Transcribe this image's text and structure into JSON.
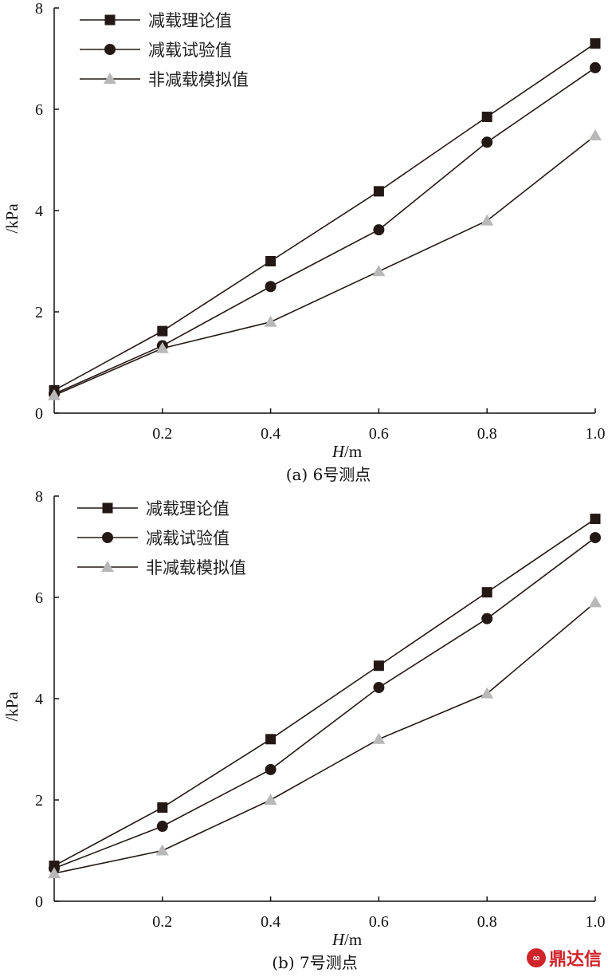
{
  "watermark": {
    "text": "鼎达信"
  },
  "chart_data": [
    {
      "type": "line",
      "caption": "(a) 6号测点",
      "xlabel_italic": "H",
      "xlabel_unit": "/m",
      "ylabel": "/kPa",
      "xlim": [
        0,
        1.0
      ],
      "ylim": [
        0,
        8
      ],
      "xticks": [
        "0.2",
        "0.4",
        "0.6",
        "0.8",
        "1.0"
      ],
      "xtick_values": [
        0.2,
        0.4,
        0.6,
        0.8,
        1.0
      ],
      "yticks": [
        "0",
        "2",
        "4",
        "6",
        "8"
      ],
      "ytick_values": [
        0,
        2,
        4,
        6,
        8
      ],
      "legend_position": "top-left",
      "x": [
        0,
        0.2,
        0.4,
        0.6,
        0.8,
        1.0
      ],
      "series": [
        {
          "name": "减载理论值",
          "marker": "square",
          "color": "#231815",
          "values": [
            0.45,
            1.62,
            3.0,
            4.38,
            5.85,
            7.3
          ]
        },
        {
          "name": "减载试验值",
          "marker": "circle",
          "color": "#231815",
          "values": [
            0.38,
            1.33,
            2.5,
            3.62,
            5.35,
            6.82
          ]
        },
        {
          "name": "非减载模拟值",
          "marker": "triangle",
          "color": "#b8b8b8",
          "values": [
            0.35,
            1.28,
            1.8,
            2.8,
            3.8,
            5.48
          ]
        }
      ]
    },
    {
      "type": "line",
      "caption": "(b) 7号测点",
      "xlabel_italic": "H",
      "xlabel_unit": "/m",
      "ylabel": "/kPa",
      "xlim": [
        0,
        1.0
      ],
      "ylim": [
        0,
        8
      ],
      "xticks": [
        "0.2",
        "0.4",
        "0.6",
        "0.8",
        "1.0"
      ],
      "xtick_values": [
        0.2,
        0.4,
        0.6,
        0.8,
        1.0
      ],
      "yticks": [
        "0",
        "2",
        "4",
        "6",
        "8"
      ],
      "ytick_values": [
        0,
        2,
        4,
        6,
        8
      ],
      "legend_position": "top-left",
      "x": [
        0,
        0.2,
        0.4,
        0.6,
        0.8,
        1.0
      ],
      "series": [
        {
          "name": "减载理论值",
          "marker": "square",
          "color": "#231815",
          "values": [
            0.7,
            1.85,
            3.2,
            4.65,
            6.1,
            7.55
          ]
        },
        {
          "name": "减载试验值",
          "marker": "circle",
          "color": "#231815",
          "values": [
            0.65,
            1.48,
            2.6,
            4.22,
            5.58,
            7.18
          ]
        },
        {
          "name": "非减载模拟值",
          "marker": "triangle",
          "color": "#b8b8b8",
          "values": [
            0.55,
            1.0,
            2.0,
            3.2,
            4.1,
            5.9
          ]
        }
      ]
    }
  ]
}
